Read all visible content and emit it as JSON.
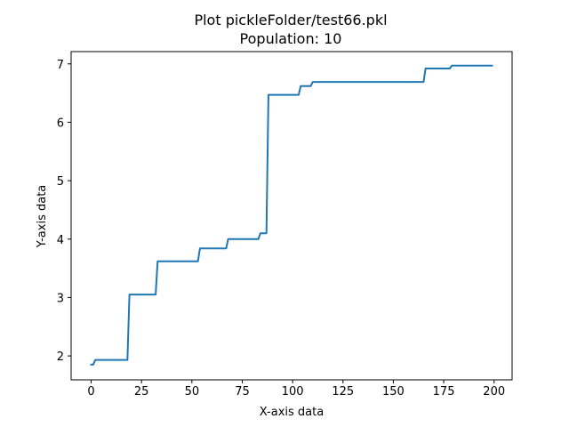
{
  "chart_data": {
    "type": "line",
    "title": "Plot pickleFolder/test66.pkl",
    "subtitle": "Population: 10",
    "xlabel": "X-axis data",
    "ylabel": "Y-axis data",
    "xlim": [
      -9.95,
      208.95
    ],
    "ylim": [
      1.59,
      7.21
    ],
    "xticks": [
      0,
      25,
      50,
      75,
      100,
      125,
      150,
      175,
      200
    ],
    "yticks": [
      2,
      3,
      4,
      5,
      6,
      7
    ],
    "grid": false,
    "line_color": "#1f77b4",
    "series": [
      {
        "x": [
          0,
          1,
          2,
          18,
          19,
          32,
          33,
          53,
          54,
          67,
          68,
          83,
          84,
          87,
          88,
          103,
          104,
          109,
          110,
          165,
          166,
          178,
          179,
          199
        ],
        "y": [
          1.85,
          1.85,
          1.93,
          1.93,
          3.05,
          3.05,
          3.62,
          3.62,
          3.84,
          3.84,
          4.0,
          4.0,
          4.1,
          4.1,
          6.47,
          6.47,
          6.62,
          6.62,
          6.69,
          6.69,
          6.92,
          6.92,
          6.97,
          6.97
        ]
      }
    ]
  }
}
